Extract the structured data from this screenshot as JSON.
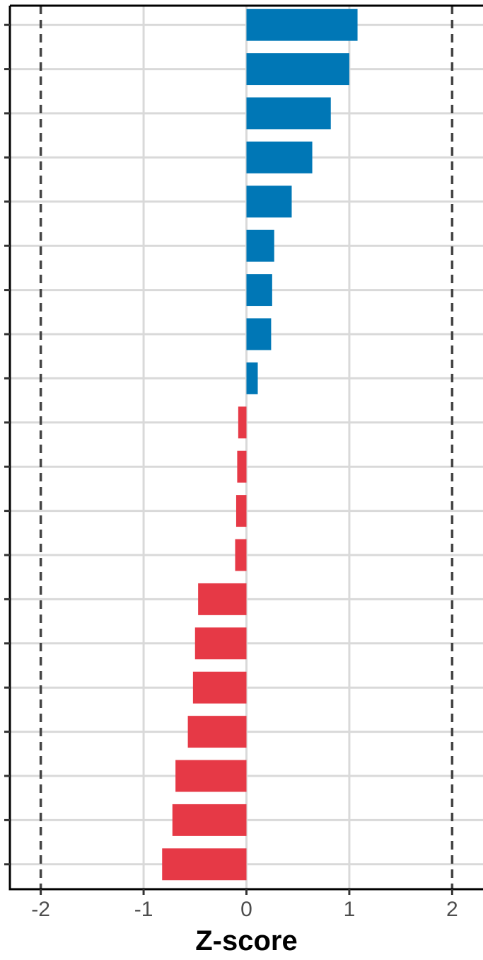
{
  "chart_data": {
    "type": "bar",
    "orientation": "horizontal",
    "title": "",
    "xlabel": "Z-score",
    "ylabel": "",
    "xlim": [
      -2.3,
      2.3
    ],
    "x_ticks": [
      "-2",
      "-1",
      "0",
      "1",
      "2"
    ],
    "x_tick_values": [
      -2,
      -1,
      0,
      1,
      2
    ],
    "reference_lines": [
      -2,
      2
    ],
    "grid": true,
    "legend": "none",
    "colors": {
      "positive": "#0077B6",
      "negative": "#E63946"
    },
    "values": [
      1.08,
      1.0,
      0.82,
      0.64,
      0.44,
      0.27,
      0.25,
      0.24,
      0.11,
      -0.08,
      -0.09,
      -0.1,
      -0.11,
      -0.47,
      -0.5,
      -0.52,
      -0.57,
      -0.69,
      -0.72,
      -0.82
    ]
  }
}
